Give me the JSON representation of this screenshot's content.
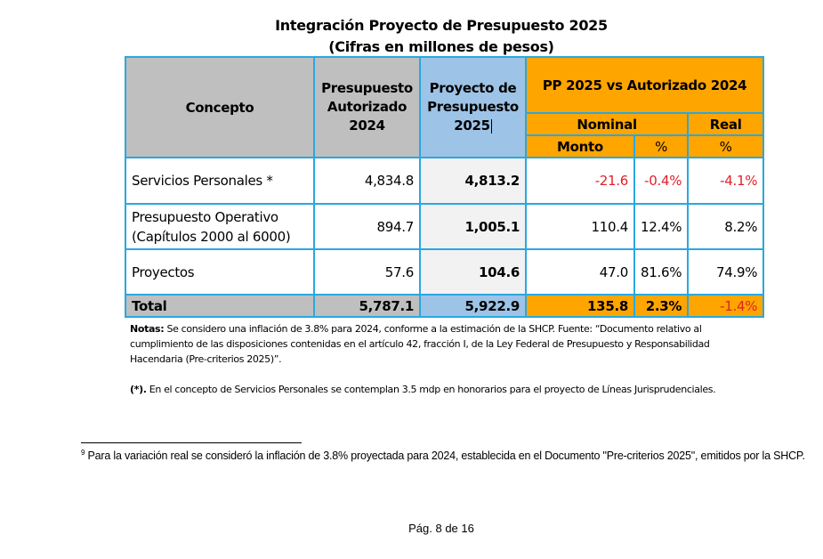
{
  "title": {
    "line1": "Integración Proyecto de Presupuesto 2025",
    "line2": "(Cifras en millones de pesos)"
  },
  "table": {
    "headers": {
      "concepto": "Concepto",
      "autorizado_2024": [
        "Presupuesto",
        "Autorizado",
        "2024"
      ],
      "proyecto_2025": [
        "Proyecto de",
        "Presupuesto",
        "2025"
      ],
      "comparison": "PP 2025 vs Autorizado 2024",
      "nominal": "Nominal",
      "real": "Real",
      "monto": "Monto",
      "pct_nominal": "%",
      "pct_real": "%"
    },
    "rows": [
      {
        "concepto": [
          "Servicios Personales *"
        ],
        "autorizado": "4,834.8",
        "proyecto": "4,813.2",
        "monto": "-21.6",
        "pct_nominal": "-0.4%",
        "pct_real": "-4.1%"
      },
      {
        "concepto": [
          "Presupuesto Operativo",
          "(Capítulos 2000 al 6000)"
        ],
        "autorizado": "894.7",
        "proyecto": "1,005.1",
        "monto": "110.4",
        "pct_nominal": "12.4%",
        "pct_real": "8.2%"
      },
      {
        "concepto": [
          "Proyectos"
        ],
        "autorizado": "57.6",
        "proyecto": "104.6",
        "monto": "47.0",
        "pct_nominal": "81.6%",
        "pct_real": "74.9%"
      }
    ],
    "total": {
      "concepto": "Total",
      "autorizado": "5,787.1",
      "proyecto": "5,922.9",
      "monto": "135.8",
      "pct_nominal": "2.3%",
      "pct_real": "-1.4%"
    }
  },
  "notes": {
    "label": "Notas:",
    "text": " Se considero una inflación de 3.8% para 2024, conforme a la estimación de la SHCP. Fuente: “Documento relativo al cumplimiento de las disposiciones contenidas en el artículo 42, fracción I, de la Ley Federal de Presupuesto y Responsabilidad Hacendaria (Pre-criterios 2025)”.",
    "asterisk_label": "(*).",
    "asterisk_text": " En el concepto de Servicios Personales se contemplan 3.5 mdp en honorarios para el proyecto de Líneas Jurisprudenciales."
  },
  "footnote": {
    "marker": "9",
    "text": " Para la variación real se consideró la inflación de 3.8% proyectada para 2024, establecida en el Documento \"Pre-criterios 2025\", emitidos por la SHCP."
  },
  "page": {
    "label": "Pág. 8 de 16"
  },
  "colors": {
    "border": "#29a8e0",
    "gray": "#bfbfbf",
    "blue": "#9dc3e6",
    "orange": "#ffa500",
    "negative": "#e0202a"
  }
}
